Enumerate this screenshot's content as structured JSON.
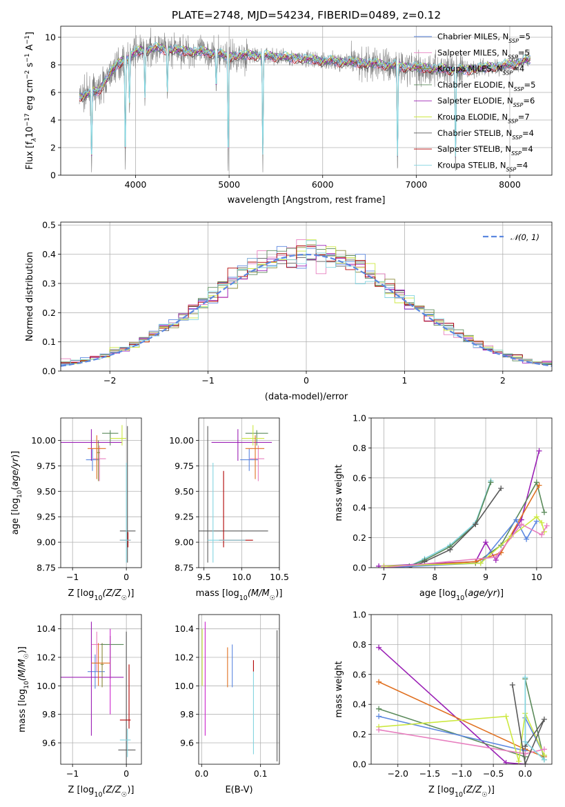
{
  "figure_title": "PLATE=2748, MJD=54234, FIBERID=0489, z=0.12",
  "colors": {
    "blue": "#5b87e0",
    "pink": "#e77fbf",
    "olive": "#8a8a3a",
    "green": "#5a8a5a",
    "purple": "#9a1fb5",
    "yellow": "#cce840",
    "gray": "#595959",
    "red": "#b00000",
    "cyan": "#82d4e0",
    "orange": "#e07020",
    "magenta": "#cc22cc"
  },
  "chart_data": [
    {
      "id": "spectrum",
      "type": "line",
      "title": "PLATE=2748, MJD=54234, FIBERID=0489, z=0.12",
      "xlabel": "wavelength [Angstrom, rest frame]",
      "ylabel_parts": {
        "pre": "Flux [f",
        "sub1": "λ",
        "mid": "10",
        "sup1": "−17",
        "post": " erg cm",
        "sup2": "−2",
        "p3": " s",
        "sup3": "−1",
        "p4": " A",
        "sup4": "−1",
        "end": "]"
      },
      "xlim": [
        3200,
        8450
      ],
      "ylim": [
        0,
        10.8
      ],
      "xticks": [
        4000,
        5000,
        6000,
        7000,
        8000
      ],
      "yticks": [
        0,
        2,
        4,
        6,
        8,
        10
      ],
      "data_range": [
        3400,
        8220
      ],
      "continuum": [
        [
          3400,
          5.7
        ],
        [
          3600,
          6.1
        ],
        [
          3800,
          8.0
        ],
        [
          4000,
          8.9
        ],
        [
          4200,
          9.2
        ],
        [
          4500,
          9.0
        ],
        [
          4800,
          8.9
        ],
        [
          5000,
          8.6
        ],
        [
          5200,
          8.7
        ],
        [
          5500,
          8.6
        ],
        [
          6000,
          8.3
        ],
        [
          6500,
          8.1
        ],
        [
          7000,
          7.8
        ],
        [
          7500,
          7.6
        ],
        [
          8000,
          8.0
        ],
        [
          8220,
          8.4
        ]
      ],
      "absorption_lines": [
        [
          3530,
          0.2
        ],
        [
          3890,
          0.3
        ],
        [
          3935,
          4.5
        ],
        [
          4100,
          5.0
        ],
        [
          4340,
          5.5
        ],
        [
          4862,
          6.0
        ],
        [
          4990,
          0.2
        ],
        [
          5360,
          0.2
        ],
        [
          6800,
          0.2
        ],
        [
          7420,
          0.2
        ]
      ],
      "legend": [
        {
          "name": "Chabrier MILES",
          "n": "5",
          "color": "blue"
        },
        {
          "name": "Salpeter MILES",
          "n": "5",
          "color": "pink"
        },
        {
          "name": "Kroupa MILES",
          "n": "4",
          "color": "olive"
        },
        {
          "name": "Chabrier ELODIE",
          "n": "5",
          "color": "green"
        },
        {
          "name": "Salpeter ELODIE",
          "n": "6",
          "color": "purple"
        },
        {
          "name": "Kroupa ELODIE",
          "n": "7",
          "color": "yellow"
        },
        {
          "name": "Chabrier STELIB",
          "n": "4",
          "color": "gray"
        },
        {
          "name": "Salpeter STELIB",
          "n": "4",
          "color": "red"
        },
        {
          "name": "Kroupa STELIB",
          "n": "4",
          "color": "cyan"
        }
      ],
      "legend_sub": "SSP",
      "legend_placement": "right"
    },
    {
      "id": "residuals",
      "type": "step",
      "xlabel": "(data-model)/error",
      "ylabel": "Normed distribution",
      "xlim": [
        -2.5,
        2.5
      ],
      "ylim": [
        0,
        0.51
      ],
      "xticks": [
        -2,
        -1,
        0,
        1,
        2
      ],
      "yticks": [
        0.0,
        0.1,
        0.2,
        0.3,
        0.4,
        0.5
      ],
      "grid": true,
      "bin_width": 0.1,
      "reference_label": "𝒩(0, 1)",
      "legend_placement": "top-right"
    },
    {
      "id": "age-vs-Z",
      "type": "errorbar",
      "xlabel_parts": {
        "pre": "Z [log",
        "sub": "10",
        "mid": "(Z/Z",
        "sub2": "☉",
        "post": ")]"
      },
      "ylabel": "age  [log10(age/yr)]",
      "xlim": [
        -1.22,
        0.28
      ],
      "ylim": [
        8.75,
        10.22
      ],
      "xticks": [
        -1,
        0
      ],
      "yticks": [
        8.75,
        9.0,
        9.25,
        9.5,
        9.75,
        10.0
      ],
      "points": [
        {
          "color": "blue",
          "x": -0.63,
          "xl": -0.75,
          "xh": -0.5,
          "y": 9.81,
          "yl": 9.7,
          "yh": 9.92
        },
        {
          "color": "pink",
          "x": -0.5,
          "xl": -0.62,
          "xh": -0.38,
          "y": 9.82,
          "yl": 9.6,
          "yh": 9.95
        },
        {
          "color": "olive",
          "x": -0.52,
          "xl": -0.55,
          "xh": -0.49,
          "y": 9.88,
          "yl": 9.6,
          "yh": 10.0
        },
        {
          "color": "green",
          "x": -0.3,
          "xl": -0.45,
          "xh": -0.15,
          "y": 10.07,
          "yl": 9.95,
          "yh": 10.1
        },
        {
          "color": "purple",
          "x": -0.65,
          "xl": -1.22,
          "xh": -0.08,
          "y": 9.98,
          "yl": 9.8,
          "yh": 10.11
        },
        {
          "color": "yellow",
          "x": -0.08,
          "xl": -0.3,
          "xh": 0.0,
          "y": 10.02,
          "yl": 9.95,
          "yh": 10.15
        },
        {
          "color": "gray",
          "x": 0.02,
          "xl": -0.12,
          "xh": 0.17,
          "y": 9.11,
          "yl": 8.8,
          "yh": 10.14
        },
        {
          "color": "red",
          "x": 0.03,
          "xl": -0.12,
          "xh": 0.08,
          "y": 9.02,
          "yl": 8.95,
          "yh": 9.1
        },
        {
          "color": "cyan",
          "x": 0.0,
          "xl": -0.12,
          "xh": 0.08,
          "y": 9.02,
          "yl": 8.8,
          "yh": 9.78
        },
        {
          "color": "orange",
          "x": -0.55,
          "xl": -0.72,
          "xh": -0.38,
          "y": 9.92,
          "yl": 9.62,
          "yh": 10.05
        }
      ]
    },
    {
      "id": "age-vs-mass",
      "type": "errorbar",
      "xlabel_parts": {
        "pre": "mass [log",
        "sub": "10",
        "mid": "(M/M",
        "sub2": "☉",
        "post": ")]"
      },
      "xlim": [
        9.43,
        10.5
      ],
      "ylim": [
        8.75,
        10.22
      ],
      "xticks": [
        9.5,
        10.0,
        10.5
      ],
      "yticks": [
        8.75,
        9.0,
        9.25,
        9.5,
        9.75,
        10.0
      ],
      "points": [
        {
          "color": "blue",
          "x": 10.1,
          "xl": 9.98,
          "xh": 10.22,
          "y": 9.81,
          "yl": 9.7,
          "yh": 9.92
        },
        {
          "color": "pink",
          "x": 10.22,
          "xl": 10.1,
          "xh": 10.3,
          "y": 9.82,
          "yl": 9.6,
          "yh": 9.95
        },
        {
          "color": "green",
          "x": 10.2,
          "xl": 10.05,
          "xh": 10.35,
          "y": 10.07,
          "yl": 9.95,
          "yh": 10.1
        },
        {
          "color": "purple",
          "x": 9.95,
          "xl": 9.6,
          "xh": 10.4,
          "y": 9.98,
          "yl": 9.8,
          "yh": 10.11
        },
        {
          "color": "yellow",
          "x": 10.15,
          "xl": 10.0,
          "xh": 10.3,
          "y": 10.02,
          "yl": 9.95,
          "yh": 10.15
        },
        {
          "color": "orange",
          "x": 10.18,
          "xl": 10.05,
          "xh": 10.3,
          "y": 9.92,
          "yl": 9.62,
          "yh": 10.05
        },
        {
          "color": "gray",
          "x": 9.55,
          "xl": 9.43,
          "xh": 10.35,
          "y": 9.11,
          "yl": 8.8,
          "yh": 10.14
        },
        {
          "color": "red",
          "x": 9.76,
          "xl": 9.7,
          "xh": 10.15,
          "y": 9.02,
          "yl": 8.95,
          "yh": 9.7
        },
        {
          "color": "cyan",
          "x": 9.62,
          "xl": 9.55,
          "xh": 10.05,
          "y": 9.02,
          "yl": 8.8,
          "yh": 9.78
        }
      ]
    },
    {
      "id": "massweight-vs-age",
      "type": "line",
      "xlabel": "age  [log10(age/yr)]",
      "ylabel": "mass weight",
      "xlim": [
        6.75,
        10.3
      ],
      "ylim": [
        0,
        1.0
      ],
      "xticks": [
        7,
        8,
        9,
        10
      ],
      "yticks": [
        0.0,
        0.2,
        0.4,
        0.6,
        0.8,
        1.0
      ],
      "grid": true,
      "series": [
        {
          "color": "cyan",
          "x": [
            7.5,
            7.8,
            8.3,
            8.8,
            9.1
          ],
          "y": [
            0.01,
            0.06,
            0.15,
            0.3,
            0.58
          ]
        },
        {
          "color": "green",
          "x": [
            7.5,
            7.8,
            8.3,
            8.8,
            9.1
          ],
          "y": [
            0.01,
            0.05,
            0.14,
            0.29,
            0.57
          ]
        },
        {
          "color": "gray",
          "x": [
            7.5,
            7.8,
            8.3,
            8.8,
            9.3
          ],
          "y": [
            0.0,
            0.04,
            0.12,
            0.29,
            0.53
          ]
        },
        {
          "color": "purple",
          "x": [
            6.9,
            8.8,
            9.0,
            9.2,
            9.7,
            10.05
          ],
          "y": [
            0.01,
            0.04,
            0.17,
            0.05,
            0.32,
            0.78
          ]
        },
        {
          "color": "green",
          "x": [
            7.0,
            8.8,
            9.3,
            10.0,
            10.15
          ],
          "y": [
            0.01,
            0.03,
            0.15,
            0.57,
            0.37
          ]
        },
        {
          "color": "orange",
          "x": [
            7.0,
            8.8,
            9.3,
            10.05
          ],
          "y": [
            0.0,
            0.04,
            0.1,
            0.55
          ]
        },
        {
          "color": "blue",
          "x": [
            7.0,
            8.9,
            9.6,
            9.8,
            10.0
          ],
          "y": [
            0.0,
            0.03,
            0.32,
            0.19,
            0.31
          ]
        },
        {
          "color": "yellow",
          "x": [
            7.0,
            8.9,
            9.5,
            10.0,
            10.1,
            10.15
          ],
          "y": [
            0.01,
            0.03,
            0.21,
            0.34,
            0.3,
            0.24
          ]
        },
        {
          "color": "pink",
          "x": [
            7.0,
            9.2,
            9.7,
            10.1,
            10.2
          ],
          "y": [
            0.0,
            0.07,
            0.29,
            0.22,
            0.28
          ]
        }
      ]
    },
    {
      "id": "mass-vs-Z",
      "type": "errorbar",
      "xlabel_parts": {
        "pre": "Z [log",
        "sub": "10",
        "mid": "(Z/Z",
        "sub2": "☉",
        "post": ")]"
      },
      "ylabel": "mass [log10(M/M☉)]",
      "xlim": [
        -1.22,
        0.28
      ],
      "ylim": [
        9.45,
        10.5
      ],
      "xticks": [
        -1,
        0
      ],
      "yticks": [
        9.6,
        9.8,
        10.0,
        10.2,
        10.4
      ],
      "points": [
        {
          "color": "blue",
          "x": -0.58,
          "xl": -0.72,
          "xh": -0.4,
          "y": 10.1,
          "yl": 9.98,
          "yh": 10.22
        },
        {
          "color": "pink",
          "x": -0.55,
          "xl": -0.65,
          "xh": -0.4,
          "y": 10.29,
          "yl": 10.1,
          "yh": 10.38
        },
        {
          "color": "olive",
          "x": -0.45,
          "xl": -0.48,
          "xh": -0.42,
          "y": 10.15,
          "yl": 9.99,
          "yh": 10.3
        },
        {
          "color": "green",
          "x": -0.3,
          "xl": -0.48,
          "xh": -0.05,
          "y": 10.29,
          "yl": 10.05,
          "yh": 10.35
        },
        {
          "color": "purple",
          "x": -0.65,
          "xl": -1.22,
          "xh": -0.05,
          "y": 10.06,
          "yl": 9.65,
          "yh": 10.45
        },
        {
          "color": "magenta",
          "x": -0.3,
          "xl": -0.3,
          "xh": -0.3,
          "y": 10.2,
          "yl": 9.8,
          "yh": 10.4
        },
        {
          "color": "orange",
          "x": -0.52,
          "xl": -0.65,
          "xh": -0.3,
          "y": 10.16,
          "yl": 10.0,
          "yh": 10.3
        },
        {
          "color": "gray",
          "x": 0.0,
          "xl": -0.15,
          "xh": 0.17,
          "y": 9.55,
          "yl": 9.3,
          "yh": 10.38
        },
        {
          "color": "red",
          "x": 0.05,
          "xl": -0.12,
          "xh": 0.08,
          "y": 9.76,
          "yl": 9.7,
          "yh": 10.15
        },
        {
          "color": "cyan",
          "x": 0.02,
          "xl": -0.12,
          "xh": 0.08,
          "y": 9.62,
          "yl": 9.5,
          "yh": 9.7
        }
      ]
    },
    {
      "id": "mass-vs-ebv",
      "type": "errorbar",
      "xlabel": "E(B-V)",
      "xlim": [
        -0.005,
        0.132
      ],
      "ylim": [
        9.45,
        10.5
      ],
      "xticks": [
        0.0,
        0.1
      ],
      "yticks": [
        9.6,
        9.8,
        10.0,
        10.2,
        10.4
      ],
      "vlines": [
        {
          "color": "yellow",
          "x": 0.001,
          "yl": 10.0,
          "yh": 10.4
        },
        {
          "color": "magenta",
          "x": 0.006,
          "yl": 9.65,
          "yh": 10.45
        },
        {
          "color": "orange",
          "x": 0.044,
          "yl": 9.99,
          "yh": 10.27
        },
        {
          "color": "blue",
          "x": 0.052,
          "yl": 9.99,
          "yh": 10.29
        },
        {
          "color": "red",
          "x": 0.088,
          "yl": 10.1,
          "yh": 10.18
        },
        {
          "color": "cyan",
          "x": 0.088,
          "yl": 9.52,
          "yh": 10.1
        },
        {
          "color": "gray",
          "x": 0.128,
          "yl": 9.47,
          "yh": 10.39
        }
      ]
    },
    {
      "id": "massweight-vs-Z",
      "type": "line",
      "xlabel_parts": {
        "pre": "Z [log",
        "sub": "10",
        "mid": "(Z/Z",
        "sub2": "☉",
        "post": ")]"
      },
      "ylabel": "mass weight",
      "xlim": [
        -2.42,
        0.42
      ],
      "ylim": [
        0,
        1.0
      ],
      "xticks": [
        -2.0,
        -1.5,
        -1.0,
        -0.5,
        0.0
      ],
      "yticks": [
        0.0,
        0.2,
        0.4,
        0.6,
        0.8,
        1.0
      ],
      "grid": true,
      "series": [
        {
          "color": "purple",
          "x": [
            -2.3,
            -0.3,
            0.0
          ],
          "y": [
            0.78,
            0.01,
            0.0
          ]
        },
        {
          "color": "orange",
          "x": [
            -2.3,
            0.0,
            0.3
          ],
          "y": [
            0.55,
            0.1,
            0.05
          ]
        },
        {
          "color": "green",
          "x": [
            -2.3,
            0.0,
            0.0,
            0.3
          ],
          "y": [
            0.37,
            0.05,
            0.57,
            0.03
          ]
        },
        {
          "color": "blue",
          "x": [
            -2.3,
            0.0,
            0.0,
            0.3
          ],
          "y": [
            0.32,
            0.09,
            0.31,
            0.06
          ]
        },
        {
          "color": "yellow",
          "x": [
            -2.3,
            -0.3,
            -0.1,
            0.0,
            0.3
          ],
          "y": [
            0.25,
            0.32,
            0.02,
            0.34,
            0.06
          ]
        },
        {
          "color": "pink",
          "x": [
            -2.3,
            0.0,
            0.3
          ],
          "y": [
            0.23,
            0.07,
            0.1
          ]
        },
        {
          "color": "gray",
          "x": [
            -0.2,
            0.0,
            0.3,
            0.0
          ],
          "y": [
            0.53,
            0.0,
            0.3,
            0.12
          ]
        },
        {
          "color": "cyan",
          "x": [
            0.0,
            0.0,
            0.3
          ],
          "y": [
            0.58,
            0.15,
            0.03
          ]
        }
      ]
    }
  ]
}
